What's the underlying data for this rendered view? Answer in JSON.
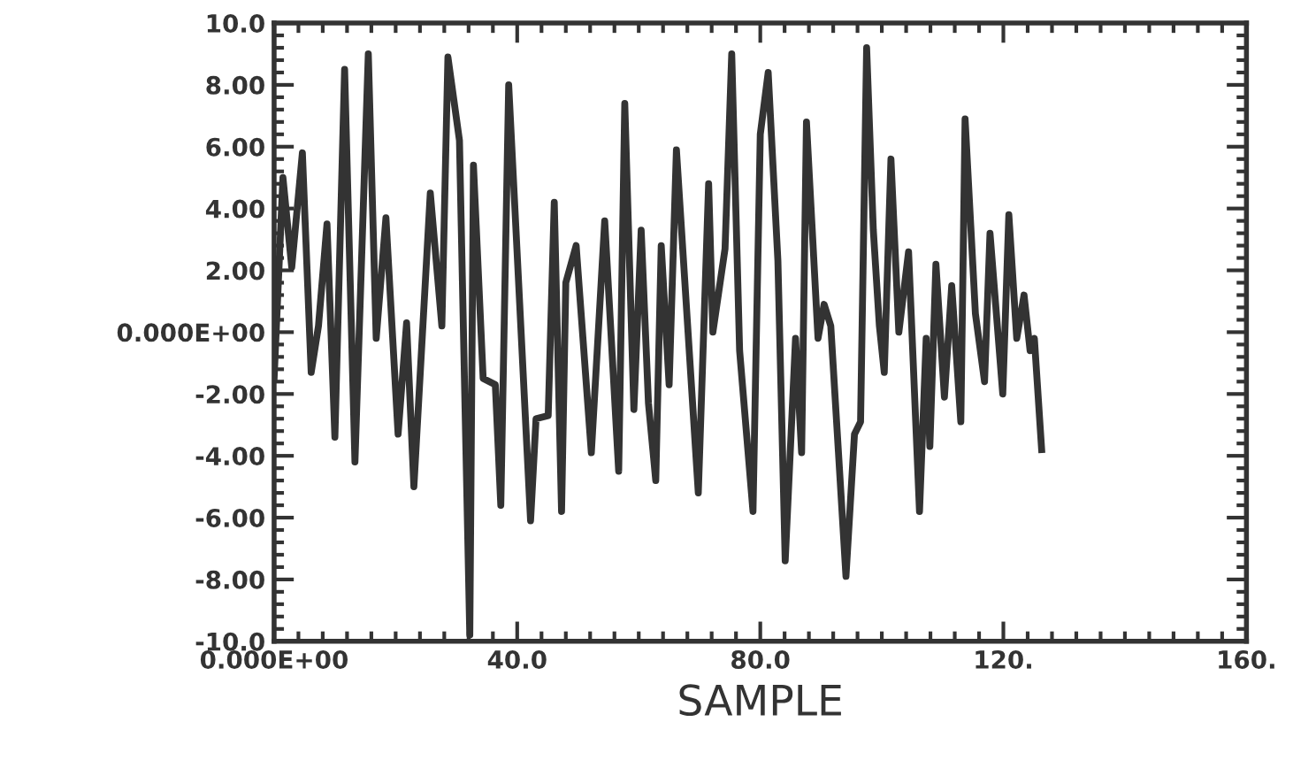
{
  "chart_data": {
    "type": "line",
    "xlabel": "SAMPLE",
    "xlim": [
      0,
      160
    ],
    "ylim": [
      -10,
      10
    ],
    "xticks": [
      {
        "value": 0,
        "label": "0.000E+00"
      },
      {
        "value": 40,
        "label": "40.0"
      },
      {
        "value": 80,
        "label": "80.0"
      },
      {
        "value": 120,
        "label": "120."
      },
      {
        "value": 160,
        "label": "160."
      }
    ],
    "yticks": [
      {
        "value": 10,
        "label": "10.0"
      },
      {
        "value": 8,
        "label": "8.00"
      },
      {
        "value": 6,
        "label": "6.00"
      },
      {
        "value": 4,
        "label": "4.00"
      },
      {
        "value": 2,
        "label": "2.00"
      },
      {
        "value": 0,
        "label": "0.000E+00"
      },
      {
        "value": -2,
        "label": "-2.00"
      },
      {
        "value": -4,
        "label": "-4.00"
      },
      {
        "value": -6,
        "label": "-6.00"
      },
      {
        "value": -8,
        "label": "-8.00"
      },
      {
        "value": -10,
        "label": "-10.0"
      }
    ],
    "grid": false,
    "legend": false,
    "marker": "none",
    "line_style": "solid",
    "series": [
      {
        "color": "#333333",
        "x": [
          0,
          1.45,
          2.9,
          4.65,
          6.1,
          7.3,
          8.7,
          10.0,
          11.6,
          13.3,
          15.5,
          16.8,
          18.4,
          20.4,
          21.8,
          23.0,
          25.7,
          27.6,
          28.6,
          30.5,
          32.2,
          32.8,
          34.4,
          36.4,
          37.3,
          38.6,
          42.2,
          43.1,
          45.1,
          46.1,
          47.3,
          48.0,
          49.7,
          52.2,
          54.4,
          56.7,
          57.7,
          59.2,
          60.4,
          61.6,
          62.8,
          63.7,
          65.0,
          66.2,
          69.8,
          71.5,
          72.2,
          74.2,
          75.3,
          76.6,
          78.8,
          80.0,
          81.3,
          82.9,
          84.1,
          85.8,
          86.8,
          87.6,
          89.5,
          90.5,
          91.6,
          94.1,
          95.5,
          96.5,
          97.5,
          98.6,
          99.6,
          100.4,
          101.5,
          102.8,
          104.4,
          106.2,
          107.3,
          107.9,
          108.9,
          110.3,
          111.5,
          113.0,
          113.7,
          115.4,
          116.9,
          117.8,
          119.9,
          120.9,
          122.2,
          123.4,
          124.4,
          125.1,
          126.3
        ],
        "values": [
          -1.5,
          5.0,
          2.1,
          5.8,
          -1.3,
          0.2,
          3.5,
          -3.4,
          8.5,
          -4.2,
          9.0,
          -0.2,
          3.7,
          -3.3,
          0.3,
          -5.0,
          4.5,
          0.2,
          8.9,
          6.2,
          -9.8,
          5.4,
          -1.5,
          -1.7,
          -5.6,
          8.0,
          -6.1,
          -2.8,
          -2.7,
          4.2,
          -5.8,
          1.6,
          2.8,
          -3.9,
          3.6,
          -4.5,
          7.4,
          -2.5,
          3.3,
          -2.3,
          -4.8,
          2.8,
          -1.7,
          5.9,
          -5.2,
          4.8,
          0.0,
          2.7,
          9.0,
          -0.6,
          -5.8,
          6.4,
          8.4,
          2.3,
          -7.4,
          -0.2,
          -3.9,
          6.8,
          -0.2,
          0.9,
          0.2,
          -7.9,
          -3.3,
          -2.9,
          9.2,
          3.3,
          0.2,
          -1.3,
          5.6,
          0.0,
          2.6,
          -5.8,
          -0.2,
          -3.7,
          2.2,
          -2.1,
          1.5,
          -2.9,
          6.9,
          0.6,
          -1.6,
          3.2,
          -2.0,
          3.8,
          -0.2,
          1.2,
          -0.6,
          -0.2,
          -3.8
        ]
      }
    ]
  }
}
